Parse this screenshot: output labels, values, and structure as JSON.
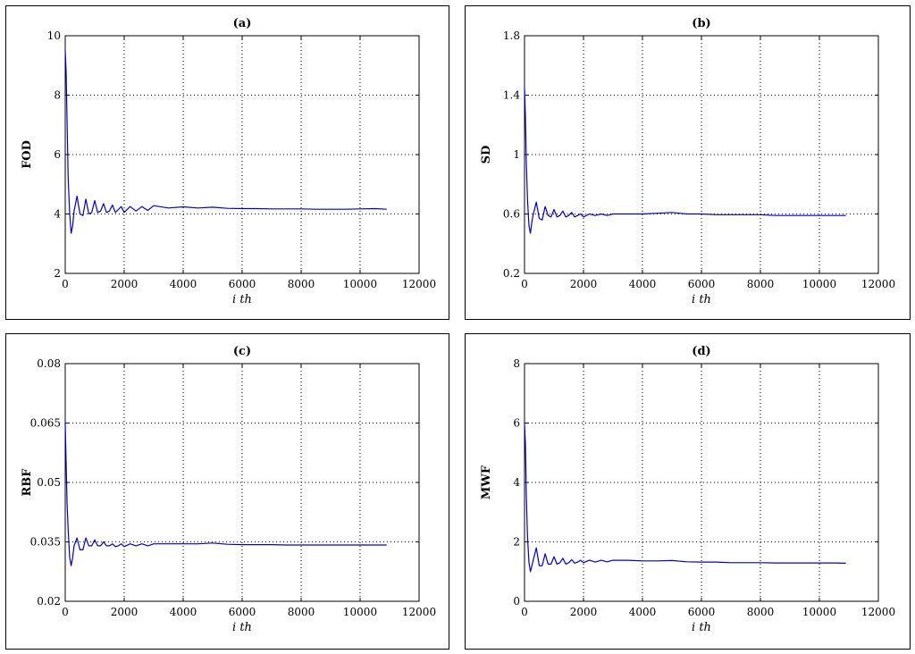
{
  "chart_data": [
    {
      "type": "line",
      "title": "(a)",
      "xlabel": "i th",
      "ylabel": "FOD",
      "xlim": [
        0,
        12000
      ],
      "ylim": [
        2,
        10
      ],
      "xticks": [
        "0",
        "2000",
        "4000",
        "6000",
        "8000",
        "10000",
        "12000"
      ],
      "yticks": [
        "2",
        "4",
        "6",
        "8",
        "10"
      ],
      "grid": true,
      "series": [
        {
          "color": "#0000cc",
          "x": [
            0,
            30,
            60,
            100,
            150,
            200,
            250,
            300,
            400,
            500,
            600,
            700,
            800,
            900,
            1000,
            1100,
            1200,
            1300,
            1400,
            1500,
            1600,
            1700,
            1800,
            1900,
            2000,
            2200,
            2400,
            2600,
            2800,
            3000,
            3500,
            4000,
            4500,
            5000,
            5500,
            6000,
            6500,
            7000,
            7500,
            8000,
            8500,
            9000,
            9500,
            10000,
            10500,
            10900
          ],
          "y": [
            9.5,
            8.8,
            7.2,
            5.2,
            4.0,
            3.35,
            3.6,
            4.1,
            4.6,
            4.0,
            3.95,
            4.5,
            4.0,
            4.05,
            4.45,
            4.05,
            4.1,
            4.35,
            4.05,
            4.1,
            4.3,
            4.05,
            4.15,
            4.25,
            4.05,
            4.25,
            4.1,
            4.25,
            4.12,
            4.28,
            4.2,
            4.24,
            4.2,
            4.23,
            4.19,
            4.18,
            4.18,
            4.17,
            4.17,
            4.17,
            4.16,
            4.16,
            4.16,
            4.17,
            4.18,
            4.16
          ]
        }
      ]
    },
    {
      "type": "line",
      "title": "(b)",
      "xlabel": "i th",
      "ylabel": "SD",
      "xlim": [
        0,
        12000
      ],
      "ylim": [
        0.2,
        1.8
      ],
      "xticks": [
        "0",
        "2000",
        "4000",
        "6000",
        "8000",
        "10000",
        "12000"
      ],
      "yticks": [
        "0.2",
        "0.6",
        "1",
        "1.4",
        "1.8"
      ],
      "grid": true,
      "series": [
        {
          "color": "#0000cc",
          "x": [
            0,
            30,
            60,
            100,
            150,
            200,
            250,
            300,
            400,
            500,
            600,
            700,
            800,
            900,
            1000,
            1100,
            1200,
            1300,
            1400,
            1500,
            1600,
            1700,
            1800,
            1900,
            2000,
            2200,
            2400,
            2600,
            2800,
            3000,
            3500,
            4000,
            4500,
            5000,
            5500,
            6000,
            6500,
            7000,
            7500,
            8000,
            8500,
            9000,
            9500,
            10000,
            10500,
            10900
          ],
          "y": [
            1.45,
            1.26,
            0.95,
            0.7,
            0.52,
            0.47,
            0.55,
            0.6,
            0.68,
            0.57,
            0.56,
            0.65,
            0.59,
            0.58,
            0.63,
            0.58,
            0.59,
            0.62,
            0.58,
            0.59,
            0.61,
            0.58,
            0.59,
            0.6,
            0.58,
            0.6,
            0.59,
            0.6,
            0.59,
            0.6,
            0.6,
            0.6,
            0.605,
            0.61,
            0.6,
            0.6,
            0.595,
            0.595,
            0.595,
            0.595,
            0.59,
            0.59,
            0.59,
            0.59,
            0.59,
            0.59
          ]
        }
      ]
    },
    {
      "type": "line",
      "title": "(c)",
      "xlabel": "i th",
      "ylabel": "RBF",
      "xlim": [
        0,
        12000
      ],
      "ylim": [
        0.02,
        0.08
      ],
      "xticks": [
        "0",
        "2000",
        "4000",
        "6000",
        "8000",
        "10000",
        "12000"
      ],
      "yticks": [
        "0.02",
        "0.035",
        "0.05",
        "0.065",
        "0.08"
      ],
      "grid": true,
      "series": [
        {
          "color": "#0000cc",
          "x": [
            0,
            30,
            60,
            100,
            150,
            200,
            250,
            300,
            400,
            500,
            600,
            700,
            800,
            900,
            1000,
            1100,
            1200,
            1300,
            1400,
            1500,
            1600,
            1700,
            1800,
            1900,
            2000,
            2200,
            2400,
            2600,
            2800,
            3000,
            3500,
            4000,
            4500,
            5000,
            5500,
            6000,
            6500,
            7000,
            7500,
            8000,
            8500,
            9000,
            9500,
            10000,
            10500,
            10900
          ],
          "y": [
            0.065,
            0.055,
            0.045,
            0.038,
            0.031,
            0.029,
            0.031,
            0.034,
            0.036,
            0.033,
            0.033,
            0.036,
            0.034,
            0.034,
            0.0355,
            0.034,
            0.034,
            0.035,
            0.034,
            0.034,
            0.0345,
            0.0338,
            0.034,
            0.0345,
            0.0338,
            0.0345,
            0.034,
            0.0345,
            0.034,
            0.0345,
            0.0345,
            0.0345,
            0.0345,
            0.0347,
            0.0344,
            0.0343,
            0.0343,
            0.0343,
            0.0342,
            0.0342,
            0.0342,
            0.0342,
            0.0342,
            0.0342,
            0.0342,
            0.0342
          ]
        }
      ]
    },
    {
      "type": "line",
      "title": "(d)",
      "xlabel": "i th",
      "ylabel": "MWF",
      "xlim": [
        0,
        12000
      ],
      "ylim": [
        0,
        8
      ],
      "xticks": [
        "0",
        "2000",
        "4000",
        "6000",
        "8000",
        "10000",
        "12000"
      ],
      "yticks": [
        "0",
        "2",
        "4",
        "6",
        "8"
      ],
      "grid": true,
      "series": [
        {
          "color": "#0000cc",
          "x": [
            0,
            30,
            60,
            100,
            150,
            200,
            250,
            300,
            400,
            500,
            600,
            700,
            800,
            900,
            1000,
            1100,
            1200,
            1300,
            1400,
            1500,
            1600,
            1700,
            1800,
            1900,
            2000,
            2200,
            2400,
            2600,
            2800,
            3000,
            3500,
            4000,
            4500,
            5000,
            5500,
            6000,
            6500,
            7000,
            7500,
            8000,
            8500,
            9000,
            9500,
            10000,
            10500,
            10900
          ],
          "y": [
            6.0,
            5.3,
            3.6,
            2.2,
            1.3,
            1.0,
            1.2,
            1.4,
            1.8,
            1.2,
            1.2,
            1.6,
            1.25,
            1.25,
            1.5,
            1.25,
            1.3,
            1.45,
            1.25,
            1.3,
            1.4,
            1.28,
            1.32,
            1.38,
            1.3,
            1.38,
            1.32,
            1.38,
            1.33,
            1.38,
            1.38,
            1.36,
            1.36,
            1.37,
            1.33,
            1.32,
            1.32,
            1.3,
            1.3,
            1.3,
            1.29,
            1.29,
            1.29,
            1.29,
            1.29,
            1.28
          ]
        }
      ]
    }
  ]
}
